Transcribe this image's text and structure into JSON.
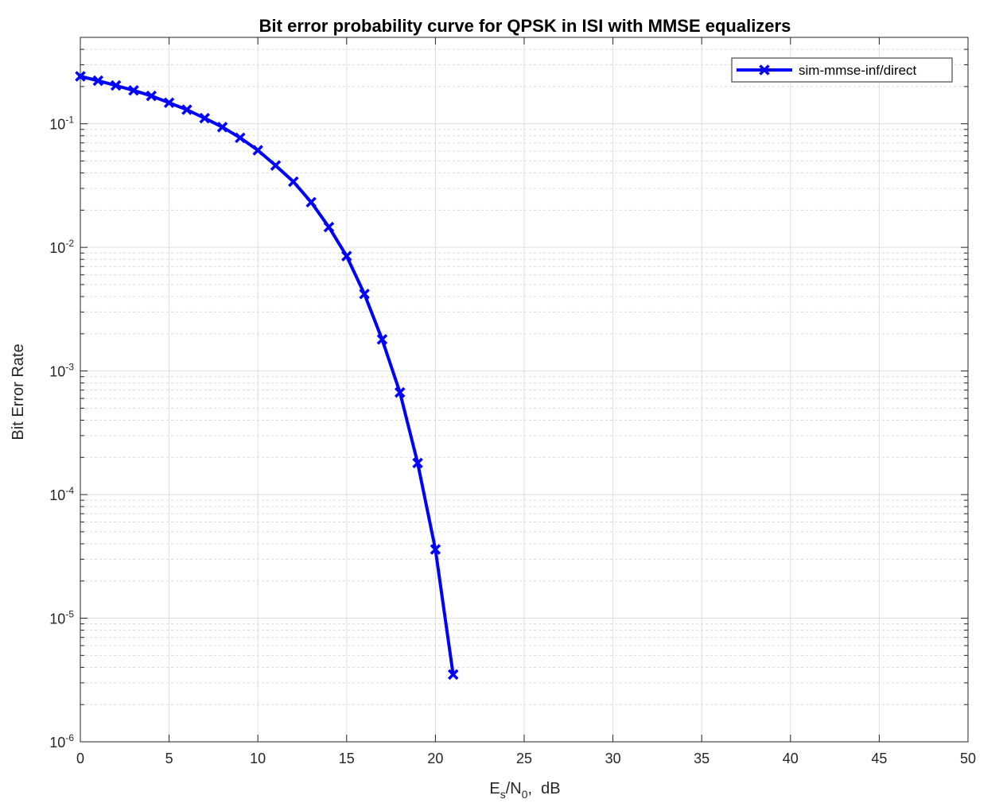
{
  "chart_data": {
    "type": "line",
    "title": "Bit error probability curve for QPSK in ISI with MMSE equalizers",
    "xlabel": {
      "base": "E",
      "base_sub": "s",
      "mid": "/N",
      "mid_sub": "0",
      "tail": ",  dB"
    },
    "ylabel": "Bit Error Rate",
    "xlim": [
      0,
      50
    ],
    "ylim": [
      1e-06,
      0.5
    ],
    "yscale": "log",
    "grid": true,
    "minor_grid": true,
    "legend_position": "top-right",
    "x_ticks": [
      "0",
      "5",
      "10",
      "15",
      "20",
      "25",
      "30",
      "35",
      "40",
      "45",
      "50"
    ],
    "y_ticks": [
      {
        "base": "10",
        "exp": "-6"
      },
      {
        "base": "10",
        "exp": "-5"
      },
      {
        "base": "10",
        "exp": "-4"
      },
      {
        "base": "10",
        "exp": "-3"
      },
      {
        "base": "10",
        "exp": "-2"
      },
      {
        "base": "10",
        "exp": "-1"
      }
    ],
    "series": [
      {
        "name": "sim-mmse-inf/direct",
        "color": "#0000ff",
        "marker": "x",
        "x": [
          0,
          1,
          2,
          3,
          4,
          5,
          6,
          7,
          8,
          9,
          10,
          11,
          12,
          13,
          14,
          15,
          16,
          17,
          18,
          19,
          20,
          21
        ],
        "y": [
          0.242,
          0.223,
          0.204,
          0.186,
          0.168,
          0.148,
          0.13,
          0.111,
          0.094,
          0.077,
          0.061,
          0.046,
          0.034,
          0.0232,
          0.0146,
          0.0085,
          0.0042,
          0.0018,
          0.00067,
          0.00018,
          3.6e-05,
          3.5e-06
        ]
      }
    ]
  }
}
